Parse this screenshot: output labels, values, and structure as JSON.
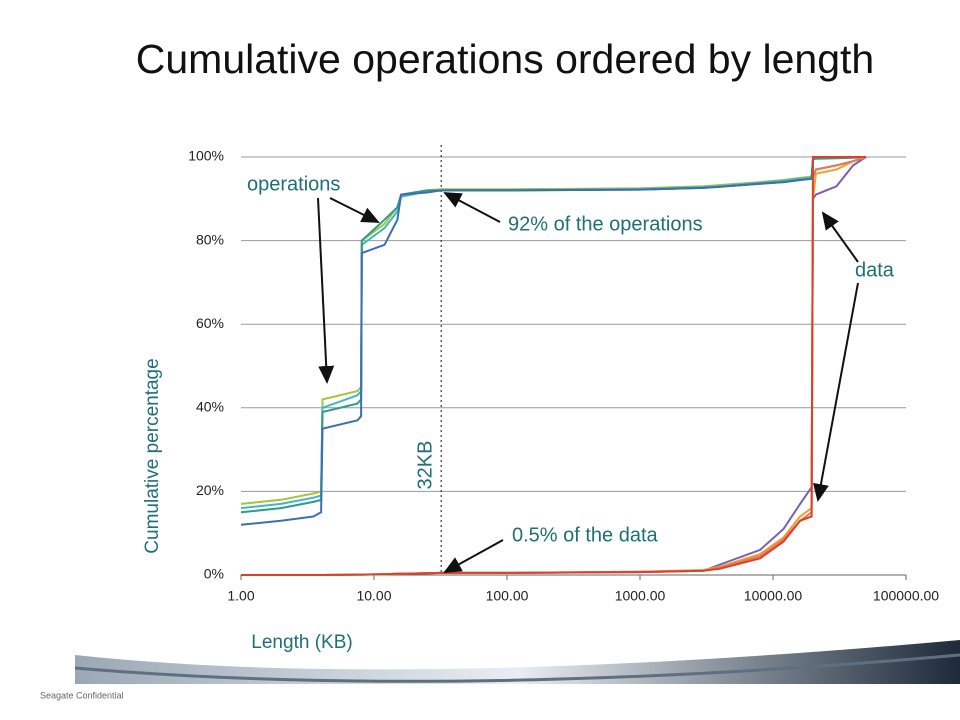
{
  "title": "Cumulative operations ordered by length",
  "footer": "Seagate Confidential",
  "chart_data": {
    "type": "line",
    "ylabel": "Cumulative percentage",
    "xlabel": "Length (KB)",
    "log_x": true,
    "grid": true,
    "xlim": [
      1,
      100000
    ],
    "xticks": [
      {
        "value": 1,
        "label": "1.00"
      },
      {
        "value": 10,
        "label": "10.00"
      },
      {
        "value": 100,
        "label": "100.00"
      },
      {
        "value": 1000,
        "label": "1000.00"
      },
      {
        "value": 10000,
        "label": "10000.00"
      },
      {
        "value": 100000,
        "label": "100000.00"
      }
    ],
    "ylim": [
      0,
      100
    ],
    "yticks": [
      {
        "value": 0,
        "label": "0%"
      },
      {
        "value": 20,
        "label": "20%"
      },
      {
        "value": 40,
        "label": "40%"
      },
      {
        "value": 60,
        "label": "60%"
      },
      {
        "value": 80,
        "label": "80%"
      },
      {
        "value": 100,
        "label": "100%"
      }
    ],
    "x": [
      1,
      2,
      3.5,
      4,
      4.1,
      7.5,
      8,
      8.1,
      12,
      15,
      16,
      25,
      32,
      100,
      1000,
      3000,
      4000,
      8000,
      12000,
      16000,
      19500,
      20000,
      21000,
      30000,
      40000,
      50000
    ],
    "series": [
      {
        "color": "#a4c639",
        "values": [
          17,
          18,
          19.5,
          20,
          42,
          44,
          45,
          80,
          84,
          88,
          91,
          92,
          92.3,
          92.3,
          92.5,
          93,
          93.3,
          94,
          94.5,
          95,
          95.3,
          95.5,
          97,
          98,
          99,
          100
        ]
      },
      {
        "color": "#41b6c4",
        "values": [
          16,
          17,
          18.5,
          19,
          40,
          43,
          44,
          79,
          83,
          87,
          90.5,
          91.7,
          92,
          92,
          92.3,
          92.8,
          93,
          93.8,
          94.3,
          94.8,
          95,
          95.3,
          97,
          98,
          99,
          100
        ]
      },
      {
        "color": "#2e9b8c",
        "values": [
          15,
          16,
          17.5,
          18,
          39,
          41,
          42,
          80,
          85,
          88,
          91,
          92,
          92,
          92,
          92.2,
          92.6,
          92.9,
          93.6,
          94,
          94.5,
          94.8,
          99.5,
          99.6,
          99.7,
          99.8,
          100
        ]
      },
      {
        "color": "#3c6fb6",
        "values": [
          12,
          13,
          14,
          15,
          35,
          37,
          38,
          77,
          79,
          85,
          91,
          91.5,
          92,
          92,
          92.2,
          92.6,
          92.9,
          93.6,
          94,
          94.5,
          94.8,
          100,
          100,
          100,
          100,
          100
        ]
      },
      {
        "color": "#7a5fb0",
        "values": [
          0,
          0,
          0,
          0,
          0,
          0.1,
          0.1,
          0.1,
          0.2,
          0.3,
          0.3,
          0.4,
          0.5,
          0.5,
          0.7,
          1,
          2.5,
          6,
          11,
          17,
          21,
          90,
          91,
          93,
          98,
          100
        ]
      },
      {
        "color": "#f0a030",
        "values": [
          0,
          0,
          0,
          0,
          0,
          0.1,
          0.1,
          0.1,
          0.2,
          0.3,
          0.3,
          0.4,
          0.5,
          0.5,
          0.8,
          1.2,
          2,
          5,
          9,
          14,
          16,
          90,
          96,
          97,
          99,
          100
        ]
      },
      {
        "color": "#e8795a",
        "values": [
          0,
          0,
          0,
          0,
          0,
          0.1,
          0.1,
          0.1,
          0.2,
          0.3,
          0.3,
          0.4,
          0.5,
          0.5,
          0.8,
          1,
          1.8,
          4.5,
          8.5,
          13,
          15,
          95,
          97,
          98,
          99,
          100
        ]
      },
      {
        "color": "#d9412b",
        "values": [
          0,
          0,
          0,
          0,
          0,
          0.1,
          0.1,
          0.1,
          0.2,
          0.3,
          0.3,
          0.4,
          0.5,
          0.5,
          0.7,
          1,
          1.5,
          4,
          8,
          13,
          14,
          100,
          100,
          100,
          100,
          100
        ]
      }
    ],
    "reference_line": {
      "x": 32,
      "label": "32KB"
    },
    "annotations": [
      "operations",
      "92% of the operations",
      "data",
      "0.5% of the data"
    ]
  }
}
